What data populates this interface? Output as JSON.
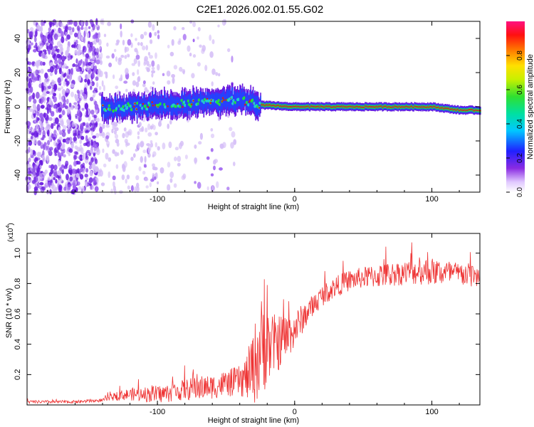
{
  "title": "C2E1.2026.002.01.55.G02",
  "colors": {
    "line": "#ee3333",
    "axis": "#000000",
    "spectrum_core": "#dd2211",
    "spectrum_mid": "#22dd44",
    "spectrum_edge": "#2244ff",
    "noise": "#7722dd"
  },
  "chart_data": [
    {
      "type": "heatmap",
      "xlabel": "Height of straight line (km)",
      "ylabel": "Frequency (Hz)",
      "xlim": [
        -195,
        135
      ],
      "ylim": [
        -50,
        50
      ],
      "xticks": [
        -100,
        0,
        100
      ],
      "xtick_labels": [
        "-100",
        "0",
        "100"
      ],
      "yticks": [
        -40,
        -20,
        0,
        20,
        40
      ],
      "ytick_labels": [
        "-40",
        "-20",
        "0",
        "20",
        "40"
      ],
      "colorbar": {
        "label": "Normalized spectral amplitude",
        "range": [
          0,
          1
        ],
        "ticks": [
          0.0,
          0.2,
          0.4,
          0.6,
          0.8
        ],
        "tick_labels": [
          "0.0",
          "0.2",
          "0.4",
          "0.6",
          "0.8"
        ]
      },
      "ridge": {
        "x": [
          -140,
          -120,
          -100,
          -80,
          -60,
          -40,
          -25,
          0,
          40,
          80,
          100,
          120,
          135
        ],
        "freq": [
          -1,
          0,
          1,
          2,
          3,
          4,
          1,
          0,
          0,
          0,
          0,
          -2,
          -2
        ]
      }
    },
    {
      "type": "line",
      "xlabel": "Height of straight line (km)",
      "ylabel": "SNR (10 * v/v)",
      "y_multiplier": "(x10",
      "y_multiplier_exp": "4",
      "xlim": [
        -195,
        135
      ],
      "ylim": [
        0,
        1.13
      ],
      "xticks": [
        -100,
        0,
        100
      ],
      "xtick_labels": [
        "-100",
        "0",
        "100"
      ],
      "yticks": [
        0.2,
        0.4,
        0.6,
        0.8,
        1.0
      ],
      "ytick_labels": [
        "0.2",
        "0.4",
        "0.6",
        "0.8",
        "1.0"
      ],
      "series": [
        {
          "name": "SNR",
          "x": [
            -195,
            -180,
            -160,
            -140,
            -130,
            -120,
            -110,
            -100,
            -90,
            -80,
            -70,
            -60,
            -50,
            -40,
            -35,
            -30,
            -25,
            -20,
            -15,
            -10,
            -5,
            0,
            10,
            20,
            30,
            40,
            50,
            60,
            70,
            80,
            90,
            100,
            110,
            120,
            135
          ],
          "y": [
            0.02,
            0.02,
            0.02,
            0.03,
            0.06,
            0.07,
            0.07,
            0.07,
            0.08,
            0.1,
            0.11,
            0.12,
            0.14,
            0.16,
            0.18,
            0.25,
            0.38,
            0.38,
            0.4,
            0.42,
            0.45,
            0.5,
            0.62,
            0.72,
            0.78,
            0.82,
            0.84,
            0.85,
            0.86,
            0.87,
            0.88,
            0.88,
            0.87,
            0.86,
            0.85
          ],
          "noise": [
            0.01,
            0.01,
            0.01,
            0.01,
            0.03,
            0.04,
            0.05,
            0.06,
            0.06,
            0.07,
            0.08,
            0.08,
            0.09,
            0.1,
            0.15,
            0.25,
            0.35,
            0.25,
            0.2,
            0.18,
            0.15,
            0.12,
            0.08,
            0.07,
            0.07,
            0.07,
            0.07,
            0.08,
            0.08,
            0.08,
            0.09,
            0.09,
            0.09,
            0.08,
            0.08
          ]
        }
      ]
    }
  ]
}
